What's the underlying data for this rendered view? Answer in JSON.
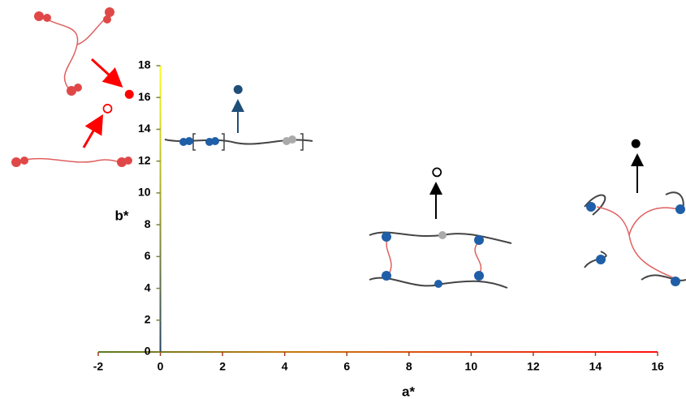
{
  "chart_data": {
    "type": "scatter",
    "xlabel": "a*",
    "ylabel": "b*",
    "xlim": [
      -2,
      16
    ],
    "xticks": [
      -2,
      0,
      2,
      4,
      6,
      8,
      10,
      12,
      14,
      16
    ],
    "ylim": [
      0,
      18
    ],
    "yticks": [
      0,
      2,
      4,
      6,
      8,
      10,
      12,
      14,
      16,
      18
    ],
    "series": [
      {
        "color": "#ff0000",
        "marker": "filled",
        "x": [
          -1.0
        ],
        "values": [
          16.2
        ]
      },
      {
        "color": "#ff0000",
        "marker": "open",
        "x": [
          -1.7
        ],
        "values": [
          15.3
        ]
      },
      {
        "color": "#1f4e79",
        "marker": "filled",
        "x": [
          2.5
        ],
        "values": [
          16.5
        ]
      },
      {
        "color": "#000000",
        "marker": "open",
        "x": [
          8.9
        ],
        "values": [
          11.3
        ]
      },
      {
        "color": "#000000",
        "marker": "filled",
        "x": [
          15.3
        ],
        "values": [
          13.1
        ]
      }
    ]
  }
}
